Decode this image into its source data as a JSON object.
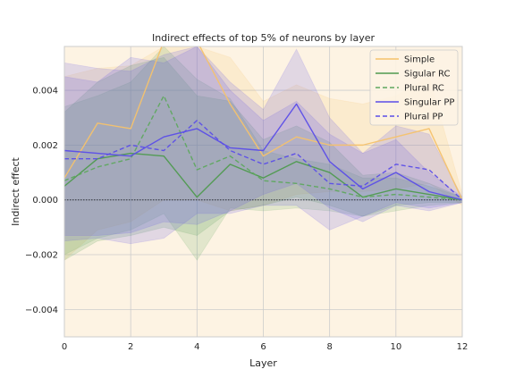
{
  "chart_data": {
    "type": "line",
    "title": "Indirect effects of top 5% of neurons by layer",
    "xlabel": "Layer",
    "ylabel": "Indirect effect",
    "xlim": [
      0,
      12
    ],
    "ylim": [
      -0.005,
      0.0056
    ],
    "x_ticks": [
      0,
      2,
      4,
      6,
      8,
      10,
      12
    ],
    "y_ticks": [
      -0.004,
      -0.002,
      0.0,
      0.002,
      0.004
    ],
    "y_tick_labels": [
      "−0.004",
      "−0.002",
      "0.000",
      "0.002",
      "0.004"
    ],
    "grid": true,
    "legend_position": "top-right",
    "reference_line_y": 0,
    "x": [
      0,
      1,
      2,
      3,
      4,
      5,
      6,
      7,
      8,
      9,
      10,
      11,
      12
    ],
    "series": [
      {
        "name": "Simple",
        "color": "#f5c26b",
        "dash": "solid",
        "values": [
          0.0008,
          0.0028,
          0.0026,
          0.0058,
          0.0058,
          0.0035,
          0.0016,
          0.0023,
          0.002,
          0.002,
          0.0023,
          0.0026,
          0.0
        ],
        "band_low": [
          -0.0022,
          -0.0011,
          -0.0008,
          0.0,
          0.0,
          -0.0004,
          -0.0002,
          0.0002,
          0.0003,
          0.0003,
          0.0004,
          0.0006,
          -0.0002
        ],
        "band_high": [
          0.0045,
          0.0048,
          0.0049,
          0.0056,
          0.0056,
          0.0052,
          0.0036,
          0.0042,
          0.0037,
          0.0035,
          0.0038,
          0.0045,
          0.0002
        ]
      },
      {
        "name": "Sigular RC",
        "color": "#4f9a4f",
        "dash": "solid",
        "values": [
          0.0005,
          0.0015,
          0.0017,
          0.0016,
          0.0001,
          0.0013,
          0.0008,
          0.0014,
          0.001,
          0.0001,
          0.0004,
          0.0002,
          0.0
        ],
        "band_low": [
          -0.0022,
          -0.0015,
          -0.0013,
          -0.001,
          -0.0013,
          -0.0004,
          -0.0002,
          0.0001,
          -0.0002,
          -0.0006,
          -0.0002,
          -0.0001,
          -0.0001
        ],
        "band_high": [
          0.0032,
          0.0043,
          0.0049,
          0.0052,
          0.0038,
          0.0036,
          0.0022,
          0.0027,
          0.0021,
          0.0009,
          0.001,
          0.0006,
          0.0001
        ]
      },
      {
        "name": "Plural RC",
        "color": "#5fa85f",
        "dash": "dashed",
        "values": [
          0.0007,
          0.0012,
          0.0015,
          0.0038,
          0.0011,
          0.0016,
          0.0007,
          0.0006,
          0.0004,
          0.0001,
          0.0002,
          0.0001,
          0.0
        ],
        "band_low": [
          -0.002,
          -0.0014,
          -0.0011,
          -0.0005,
          -0.0022,
          -0.0003,
          -0.0004,
          -0.0003,
          -0.0004,
          -0.0006,
          -0.0004,
          -0.0002,
          -0.0001
        ],
        "band_high": [
          0.0034,
          0.0038,
          0.0043,
          0.0056,
          0.0044,
          0.0037,
          0.0018,
          0.0015,
          0.0013,
          0.0008,
          0.0008,
          0.0005,
          0.0001
        ]
      },
      {
        "name": "Singular PP",
        "color": "#5b4de8",
        "dash": "solid",
        "values": [
          0.0018,
          0.0017,
          0.0016,
          0.0023,
          0.0026,
          0.0019,
          0.0018,
          0.0035,
          0.0014,
          0.0004,
          0.001,
          0.0003,
          0.0
        ],
        "band_low": [
          -0.0013,
          -0.0013,
          -0.0012,
          -0.0008,
          -0.0009,
          -0.0004,
          0.0002,
          0.0006,
          -0.0003,
          -0.0008,
          -0.0002,
          -0.0004,
          -0.0001
        ],
        "band_high": [
          0.005,
          0.0048,
          0.0047,
          0.0053,
          0.0056,
          0.0043,
          0.0033,
          0.0055,
          0.003,
          0.0017,
          0.0022,
          0.001,
          0.0001
        ]
      },
      {
        "name": "Plural PP",
        "color": "#5b4de8",
        "dash": "dashed",
        "values": [
          0.0015,
          0.0015,
          0.002,
          0.0018,
          0.0029,
          0.0018,
          0.0013,
          0.0017,
          0.0006,
          0.0005,
          0.0013,
          0.0011,
          0.0
        ],
        "band_low": [
          -0.0015,
          -0.0014,
          -0.0016,
          -0.0014,
          -0.0005,
          -0.0005,
          -0.0002,
          -0.0002,
          -0.0011,
          -0.0006,
          -0.0001,
          -0.0003,
          -0.0001
        ],
        "band_high": [
          0.0045,
          0.0043,
          0.0052,
          0.005,
          0.0056,
          0.004,
          0.0029,
          0.0036,
          0.0024,
          0.0017,
          0.0027,
          0.0024,
          0.0001
        ]
      }
    ]
  }
}
